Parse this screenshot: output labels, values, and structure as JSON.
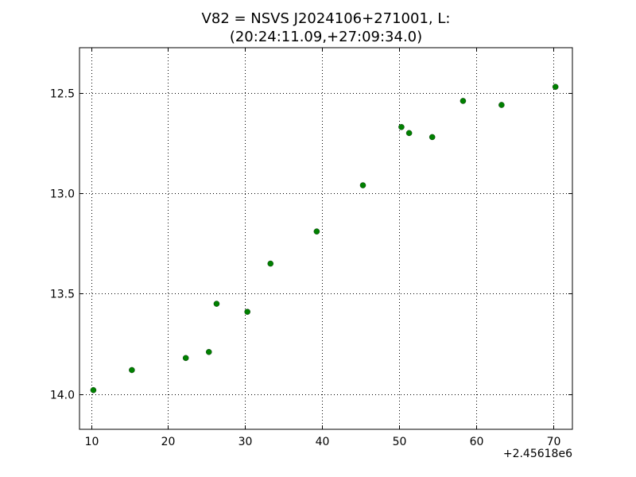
{
  "chart_data": {
    "type": "scatter",
    "title_lines": [
      "V82 = NSVS J2024106+271001, L:",
      "(20:24:11.09,+27:09:34.0)"
    ],
    "xlabel": "",
    "ylabel": "",
    "x_offset_label": "+2.45618e6",
    "xlim": [
      8.5,
      72.5
    ],
    "ylim": [
      12.275,
      14.175
    ],
    "y_inverted": true,
    "grid": true,
    "marker_color": "#008000",
    "x_ticks": [
      10,
      20,
      30,
      40,
      50,
      60,
      70
    ],
    "x_tick_labels": [
      "10",
      "20",
      "30",
      "40",
      "50",
      "60",
      "70"
    ],
    "y_ticks": [
      12.5,
      13.0,
      13.5,
      14.0
    ],
    "y_tick_labels": [
      "12.5",
      "13.0",
      "13.5",
      "14.0"
    ],
    "series": [
      {
        "x": [
          10.3,
          15.3,
          22.3,
          25.3,
          26.3,
          30.3,
          33.3,
          39.3,
          45.3,
          50.3,
          51.3,
          54.3,
          58.3,
          63.3,
          70.3
        ],
        "y": [
          13.98,
          13.88,
          13.82,
          13.79,
          13.55,
          13.59,
          13.35,
          13.19,
          12.96,
          12.67,
          12.7,
          12.72,
          12.54,
          12.56,
          12.47
        ]
      }
    ]
  }
}
